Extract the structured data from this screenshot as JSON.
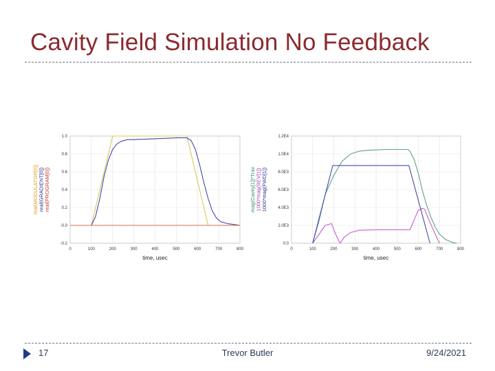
{
  "slide": {
    "title": "Cavity Field Simulation No Feedback",
    "number": "17",
    "author": "Trevor Butler",
    "date": "9/24/2021"
  },
  "chart_data": [
    {
      "type": "line",
      "xlabel": "time, usec",
      "xlim": [
        0,
        800
      ],
      "ylim": [
        -0.2,
        1.0
      ],
      "x_ticks": [
        0,
        100,
        200,
        300,
        400,
        500,
        600,
        700,
        800
      ],
      "y_ticks": [
        -0.2,
        0.0,
        0.2,
        0.4,
        0.6,
        0.8,
        1.0
      ],
      "y_tick_labels": [
        "-0.2",
        "-0.0",
        "0.2",
        "0.4",
        "0.6",
        "0.8",
        "1.0"
      ],
      "ylabels": [
        {
          "text": "real(MODULATOR[0])",
          "color": "#e0a21b"
        },
        {
          "text": "real(GRADIENT[0])",
          "color": "#2d2d8f"
        },
        {
          "text": "real(PROGRAM[0])",
          "color": "#c0392b"
        }
      ],
      "series": [
        {
          "name": "real(MODULATOR[0])",
          "color": "#d9c95a",
          "x": [
            0,
            100,
            200,
            550,
            650,
            800
          ],
          "y": [
            0.0,
            0.0,
            1.0,
            1.0,
            0.0,
            0.0
          ]
        },
        {
          "name": "real(GRADIENT[0])",
          "color": "#4848a6",
          "x": [
            100,
            120,
            140,
            160,
            180,
            200,
            220,
            240,
            270,
            300,
            400,
            500,
            550,
            570,
            590,
            610,
            630,
            650,
            670,
            690,
            710,
            740,
            770,
            800
          ],
          "y": [
            0.0,
            0.1,
            0.3,
            0.55,
            0.73,
            0.85,
            0.91,
            0.94,
            0.96,
            0.96,
            0.97,
            0.98,
            0.98,
            0.95,
            0.85,
            0.68,
            0.48,
            0.3,
            0.16,
            0.08,
            0.04,
            0.02,
            0.01,
            0.0
          ]
        },
        {
          "name": "real(PROGRAM[0])",
          "color": "#d96b4a",
          "x": [
            0,
            100,
            650,
            800
          ],
          "y": [
            0.0,
            0.0,
            0.0,
            0.0
          ]
        }
      ]
    },
    {
      "type": "line",
      "xlabel": "time, usec",
      "xlim": [
        0,
        800
      ],
      "ylim": [
        0,
        12000
      ],
      "x_ticks": [
        0,
        100,
        200,
        300,
        400,
        500,
        600,
        700,
        800
      ],
      "y_ticks": [
        0,
        2000,
        4000,
        6000,
        8000,
        10000,
        12000
      ],
      "y_tick_labels": [
        "0.0",
        "2.0E3",
        "4.0E3",
        "6.0E3",
        "8.0E3",
        "1.0E4",
        "1.2E4"
      ],
      "ylabels": [
        {
          "text": "mag(Cavity[1])*Trav",
          "color": "#2d8f6a"
        },
        {
          "text": "1000*mag(REV[1])",
          "color": "#a43fb0"
        },
        {
          "text": "1000*mag(FWD[1])",
          "color": "#2d2d8f"
        }
      ],
      "series": [
        {
          "name": "mag(Cavity[1])*Trav",
          "color": "#5f9f8a",
          "x": [
            100,
            130,
            160,
            200,
            240,
            280,
            320,
            360,
            400,
            450,
            500,
            550,
            560,
            580,
            600,
            620,
            640,
            660,
            680,
            700,
            730,
            760,
            780
          ],
          "y": [
            0,
            2500,
            5500,
            7600,
            9200,
            10000,
            10300,
            10400,
            10450,
            10500,
            10500,
            10500,
            10300,
            9400,
            7800,
            5800,
            4200,
            2900,
            1800,
            1000,
            400,
            100,
            0
          ]
        },
        {
          "name": "1000*mag(REV[1])",
          "color": "#c45dc9",
          "x": [
            100,
            130,
            160,
            190,
            200,
            215,
            230,
            250,
            280,
            320,
            360,
            400,
            450,
            500,
            550,
            560,
            580,
            600,
            620,
            630,
            650,
            680,
            700
          ],
          "y": [
            0,
            1000,
            2000,
            2200,
            1500,
            700,
            0,
            700,
            1200,
            1450,
            1480,
            1500,
            1500,
            1500,
            1500,
            1500,
            2600,
            3700,
            3900,
            3800,
            2600,
            1000,
            0
          ]
        },
        {
          "name": "1000*mag(FWD[1])",
          "color": "#4848a6",
          "x": [
            100,
            195,
            555,
            655
          ],
          "y": [
            0,
            8700,
            8700,
            0
          ]
        }
      ]
    }
  ]
}
